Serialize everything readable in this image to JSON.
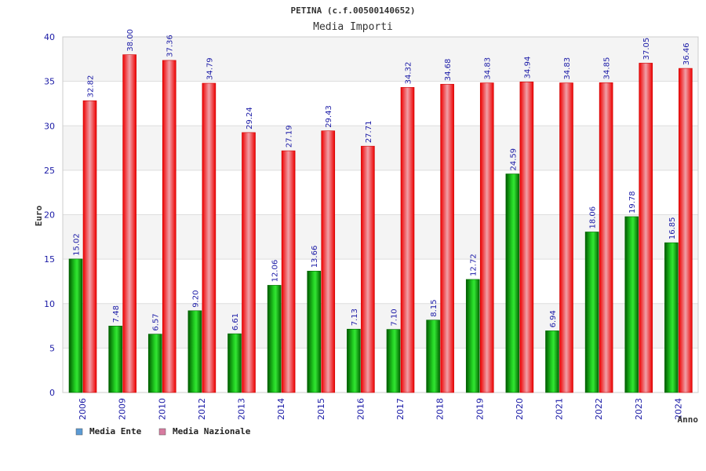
{
  "chart_data": {
    "type": "bar",
    "title": "PETINA (c.f.00500140652)",
    "subtitle": "Media Importi",
    "xlabel": "Anno",
    "ylabel": "Euro",
    "ylim": [
      0,
      40
    ],
    "yticks": [
      0,
      5,
      10,
      15,
      20,
      25,
      30,
      35,
      40
    ],
    "categories": [
      "2006",
      "2009",
      "2010",
      "2012",
      "2013",
      "2014",
      "2015",
      "2016",
      "2017",
      "2018",
      "2019",
      "2020",
      "2021",
      "2022",
      "2023",
      "2024"
    ],
    "series": [
      {
        "name": "Media Ente",
        "color": "#00b000",
        "legend_color": "#5b9bd5",
        "values": [
          15.02,
          7.48,
          6.57,
          9.2,
          6.61,
          12.06,
          13.66,
          7.13,
          7.1,
          8.15,
          12.72,
          24.59,
          6.94,
          18.06,
          19.78,
          16.85
        ],
        "labels": [
          "15.02",
          "7.48",
          "6.57",
          "9.20",
          "6.61",
          "12.06",
          "13.66",
          "7.13",
          "7.10",
          "8.15",
          "12.72",
          "24.59",
          "6.94",
          "18.06",
          "19.78",
          "16.85"
        ]
      },
      {
        "name": "Media Nazionale",
        "color": "#ee1111",
        "legend_color": "#d77ba0",
        "values": [
          32.82,
          38.0,
          37.36,
          34.79,
          29.24,
          27.19,
          29.43,
          27.71,
          34.32,
          34.68,
          34.83,
          34.94,
          34.83,
          34.85,
          37.05,
          36.46
        ],
        "labels": [
          "32.82",
          "38.00",
          "37.36",
          "34.79",
          "29.24",
          "27.19",
          "29.43",
          "27.71",
          "34.32",
          "34.68",
          "34.83",
          "34.94",
          "34.83",
          "34.85",
          "37.05",
          "36.46"
        ]
      }
    ],
    "grid": true,
    "legend": "bottom-left"
  }
}
